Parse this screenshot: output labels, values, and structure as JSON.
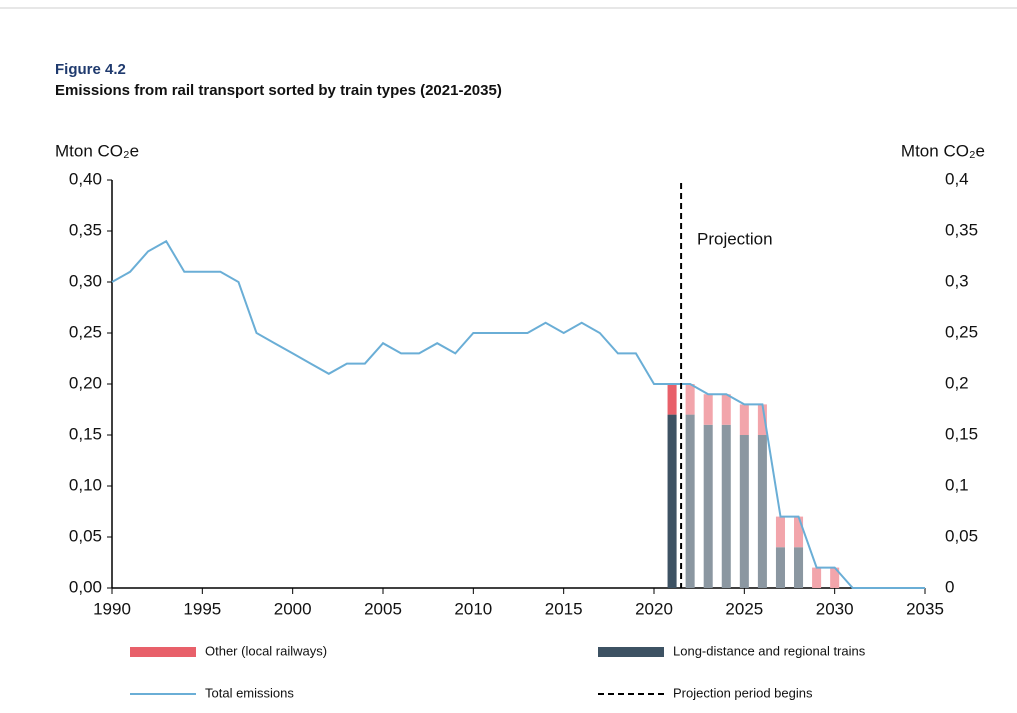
{
  "chart_data": {
    "type": "bar",
    "figure_label": "Figure 4.2",
    "title": "Emissions from rail transport sorted by train types (2021-2035)",
    "ylabel": "Mton CO₂e",
    "y2label": "Mton CO₂e",
    "annotation": "Projection",
    "projection_x": 2021.5,
    "projection_label": "Projection period begins",
    "x": [
      1990,
      1991,
      1992,
      1993,
      1994,
      1995,
      1996,
      1997,
      1998,
      1999,
      2000,
      2001,
      2002,
      2003,
      2004,
      2005,
      2006,
      2007,
      2008,
      2009,
      2010,
      2011,
      2012,
      2013,
      2014,
      2015,
      2016,
      2017,
      2018,
      2019,
      2020,
      2021,
      2022,
      2023,
      2024,
      2025,
      2026,
      2027,
      2028,
      2029,
      2030,
      2031,
      2032,
      2033,
      2034,
      2035
    ],
    "xlim": [
      1990,
      2035
    ],
    "xticks": [
      1990,
      1995,
      2000,
      2005,
      2010,
      2015,
      2020,
      2025,
      2030,
      2035
    ],
    "ylim": [
      0,
      0.4
    ],
    "yticks": [
      {
        "value": 0,
        "label": "0,00"
      },
      {
        "value": 0.05,
        "label": "0,05"
      },
      {
        "value": 0.1,
        "label": "0,10"
      },
      {
        "value": 0.15,
        "label": "0,15"
      },
      {
        "value": 0.2,
        "label": "0,20"
      },
      {
        "value": 0.25,
        "label": "0,25"
      },
      {
        "value": 0.3,
        "label": "0,30"
      },
      {
        "value": 0.35,
        "label": "0,35"
      },
      {
        "value": 0.4,
        "label": "0,40"
      }
    ],
    "y2lim": [
      0,
      0.4
    ],
    "y2ticks": [
      0,
      {
        "value": 0.05,
        "label": "0,05"
      },
      {
        "value": 0.1,
        "label": "0,1"
      },
      {
        "value": 0.15,
        "label": "0,15"
      },
      {
        "value": 0.2,
        "label": "0,2"
      },
      {
        "value": 0.25,
        "label": "0,25"
      },
      {
        "value": 0.3,
        "label": "0,3"
      },
      {
        "value": 0.35,
        "label": "0,35"
      },
      {
        "value": 0.4,
        "label": "0,4"
      }
    ],
    "series": [
      {
        "name": "Other (local railways)",
        "type": "bar",
        "color": "#e8606a",
        "projection_color": "#f2a5ab",
        "values": [
          null,
          null,
          null,
          null,
          null,
          null,
          null,
          null,
          null,
          null,
          null,
          null,
          null,
          null,
          null,
          null,
          null,
          null,
          null,
          null,
          null,
          null,
          null,
          null,
          null,
          null,
          null,
          null,
          null,
          null,
          null,
          0.03,
          0.03,
          0.03,
          0.03,
          0.03,
          0.03,
          0.03,
          0.03,
          0.02,
          0.02,
          null,
          null,
          null,
          null,
          null
        ]
      },
      {
        "name": "Long-distance and regional trains",
        "type": "bar",
        "color": "#3d5263",
        "projection_color": "#8b97a1",
        "values": [
          null,
          null,
          null,
          null,
          null,
          null,
          null,
          null,
          null,
          null,
          null,
          null,
          null,
          null,
          null,
          null,
          null,
          null,
          null,
          null,
          null,
          null,
          null,
          null,
          null,
          null,
          null,
          null,
          null,
          null,
          null,
          0.17,
          0.17,
          0.16,
          0.16,
          0.15,
          0.15,
          0.04,
          0.04,
          0,
          0,
          null,
          null,
          null,
          null,
          null
        ]
      },
      {
        "name": "Total emissions",
        "type": "line",
        "color": "#6aaed6",
        "values": [
          0.3,
          0.31,
          0.33,
          0.34,
          0.31,
          0.31,
          0.31,
          0.3,
          0.25,
          0.24,
          0.23,
          0.22,
          0.21,
          0.22,
          0.22,
          0.24,
          0.23,
          0.23,
          0.24,
          0.23,
          0.25,
          0.25,
          0.25,
          0.25,
          0.26,
          0.25,
          0.26,
          0.25,
          0.23,
          0.23,
          0.2,
          0.2,
          0.2,
          0.19,
          0.19,
          0.18,
          0.18,
          0.07,
          0.07,
          0.02,
          0.02,
          0,
          0,
          0,
          0,
          0
        ]
      }
    ]
  }
}
